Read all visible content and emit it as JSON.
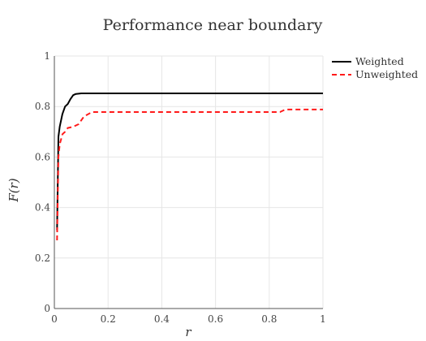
{
  "chart_data": {
    "type": "line",
    "title": "Performance near boundary",
    "xlabel": "r",
    "ylabel": "F(r)",
    "xlim": [
      0,
      1
    ],
    "ylim": [
      0,
      1
    ],
    "xticks": [
      0,
      0.2,
      0.4,
      0.6,
      0.8,
      1
    ],
    "xtick_labels": [
      "0",
      "0.2",
      "0.4",
      "0.6",
      "0.8",
      "1"
    ],
    "yticks": [
      0,
      0.2,
      0.4,
      0.6,
      0.8,
      1
    ],
    "ytick_labels": [
      "0",
      "0.2",
      "0.4",
      "0.6",
      "0.8",
      "1"
    ],
    "grid": true,
    "legend_position": "top-right",
    "series": [
      {
        "name": "Weighted",
        "color": "#000000",
        "dash": "solid",
        "points": [
          [
            0.01,
            0.31
          ],
          [
            0.015,
            0.68
          ],
          [
            0.02,
            0.72
          ],
          [
            0.03,
            0.77
          ],
          [
            0.04,
            0.8
          ],
          [
            0.05,
            0.81
          ],
          [
            0.06,
            0.83
          ],
          [
            0.07,
            0.845
          ],
          [
            0.08,
            0.85
          ],
          [
            0.1,
            0.852
          ],
          [
            0.2,
            0.852
          ],
          [
            0.4,
            0.852
          ],
          [
            0.6,
            0.852
          ],
          [
            0.8,
            0.852
          ],
          [
            1.0,
            0.852
          ]
        ]
      },
      {
        "name": "Unweighted",
        "color": "#ff1a1a",
        "dash": "dashed",
        "points": [
          [
            0.01,
            0.27
          ],
          [
            0.015,
            0.6
          ],
          [
            0.02,
            0.65
          ],
          [
            0.03,
            0.69
          ],
          [
            0.04,
            0.7
          ],
          [
            0.05,
            0.715
          ],
          [
            0.07,
            0.72
          ],
          [
            0.09,
            0.73
          ],
          [
            0.11,
            0.76
          ],
          [
            0.14,
            0.778
          ],
          [
            0.2,
            0.778
          ],
          [
            0.4,
            0.778
          ],
          [
            0.6,
            0.778
          ],
          [
            0.8,
            0.778
          ],
          [
            0.84,
            0.778
          ],
          [
            0.86,
            0.788
          ],
          [
            1.0,
            0.788
          ]
        ]
      }
    ]
  }
}
